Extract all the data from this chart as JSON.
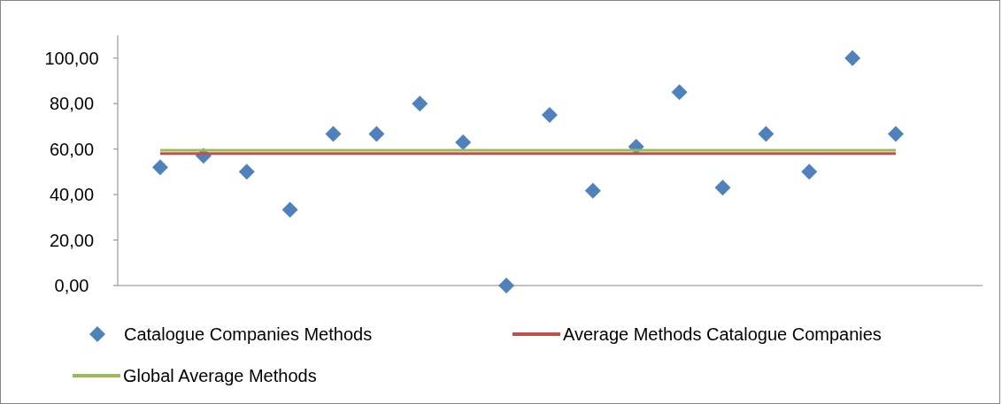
{
  "chart_data": {
    "type": "scatter",
    "categories": [
      null,
      null,
      null,
      null,
      null,
      null,
      null,
      null,
      null,
      null,
      null,
      null,
      null,
      null,
      null,
      null,
      null,
      null
    ],
    "series": [
      {
        "name": "Catalogue Companies Methods",
        "marker": "diamond",
        "color": "#4f81bd",
        "values": [
          52,
          57,
          50,
          33.3,
          66.7,
          66.7,
          80,
          63,
          0,
          75,
          41.7,
          61,
          85,
          43,
          66.7,
          50,
          100,
          66.7
        ]
      },
      {
        "name": "Average Methods Catalogue Companies",
        "type": "line",
        "marker": "none",
        "color": "#c0504d",
        "values": [
          58,
          58,
          58,
          58,
          58,
          58,
          58,
          58,
          58,
          58,
          58,
          58,
          58,
          58,
          58,
          58,
          58,
          58
        ]
      },
      {
        "name": "Global Average Methods",
        "type": "line",
        "marker": "none",
        "color": "#9bbb59",
        "values": [
          59.5,
          59.5,
          59.5,
          59.5,
          59.5,
          59.5,
          59.5,
          59.5,
          59.5,
          59.5,
          59.5,
          59.5,
          59.5,
          59.5,
          59.5,
          59.5,
          59.5,
          59.5
        ]
      }
    ],
    "ylim": [
      0,
      110
    ],
    "yticks": [
      {
        "value": 0,
        "label": "0,00"
      },
      {
        "value": 20,
        "label": "20,00"
      },
      {
        "value": 40,
        "label": "40,00"
      },
      {
        "value": 60,
        "label": "60,00"
      },
      {
        "value": 80,
        "label": "80,00"
      },
      {
        "value": 100,
        "label": "100,00"
      }
    ],
    "grid": false,
    "legend": "bottom",
    "line_style": "solid"
  }
}
